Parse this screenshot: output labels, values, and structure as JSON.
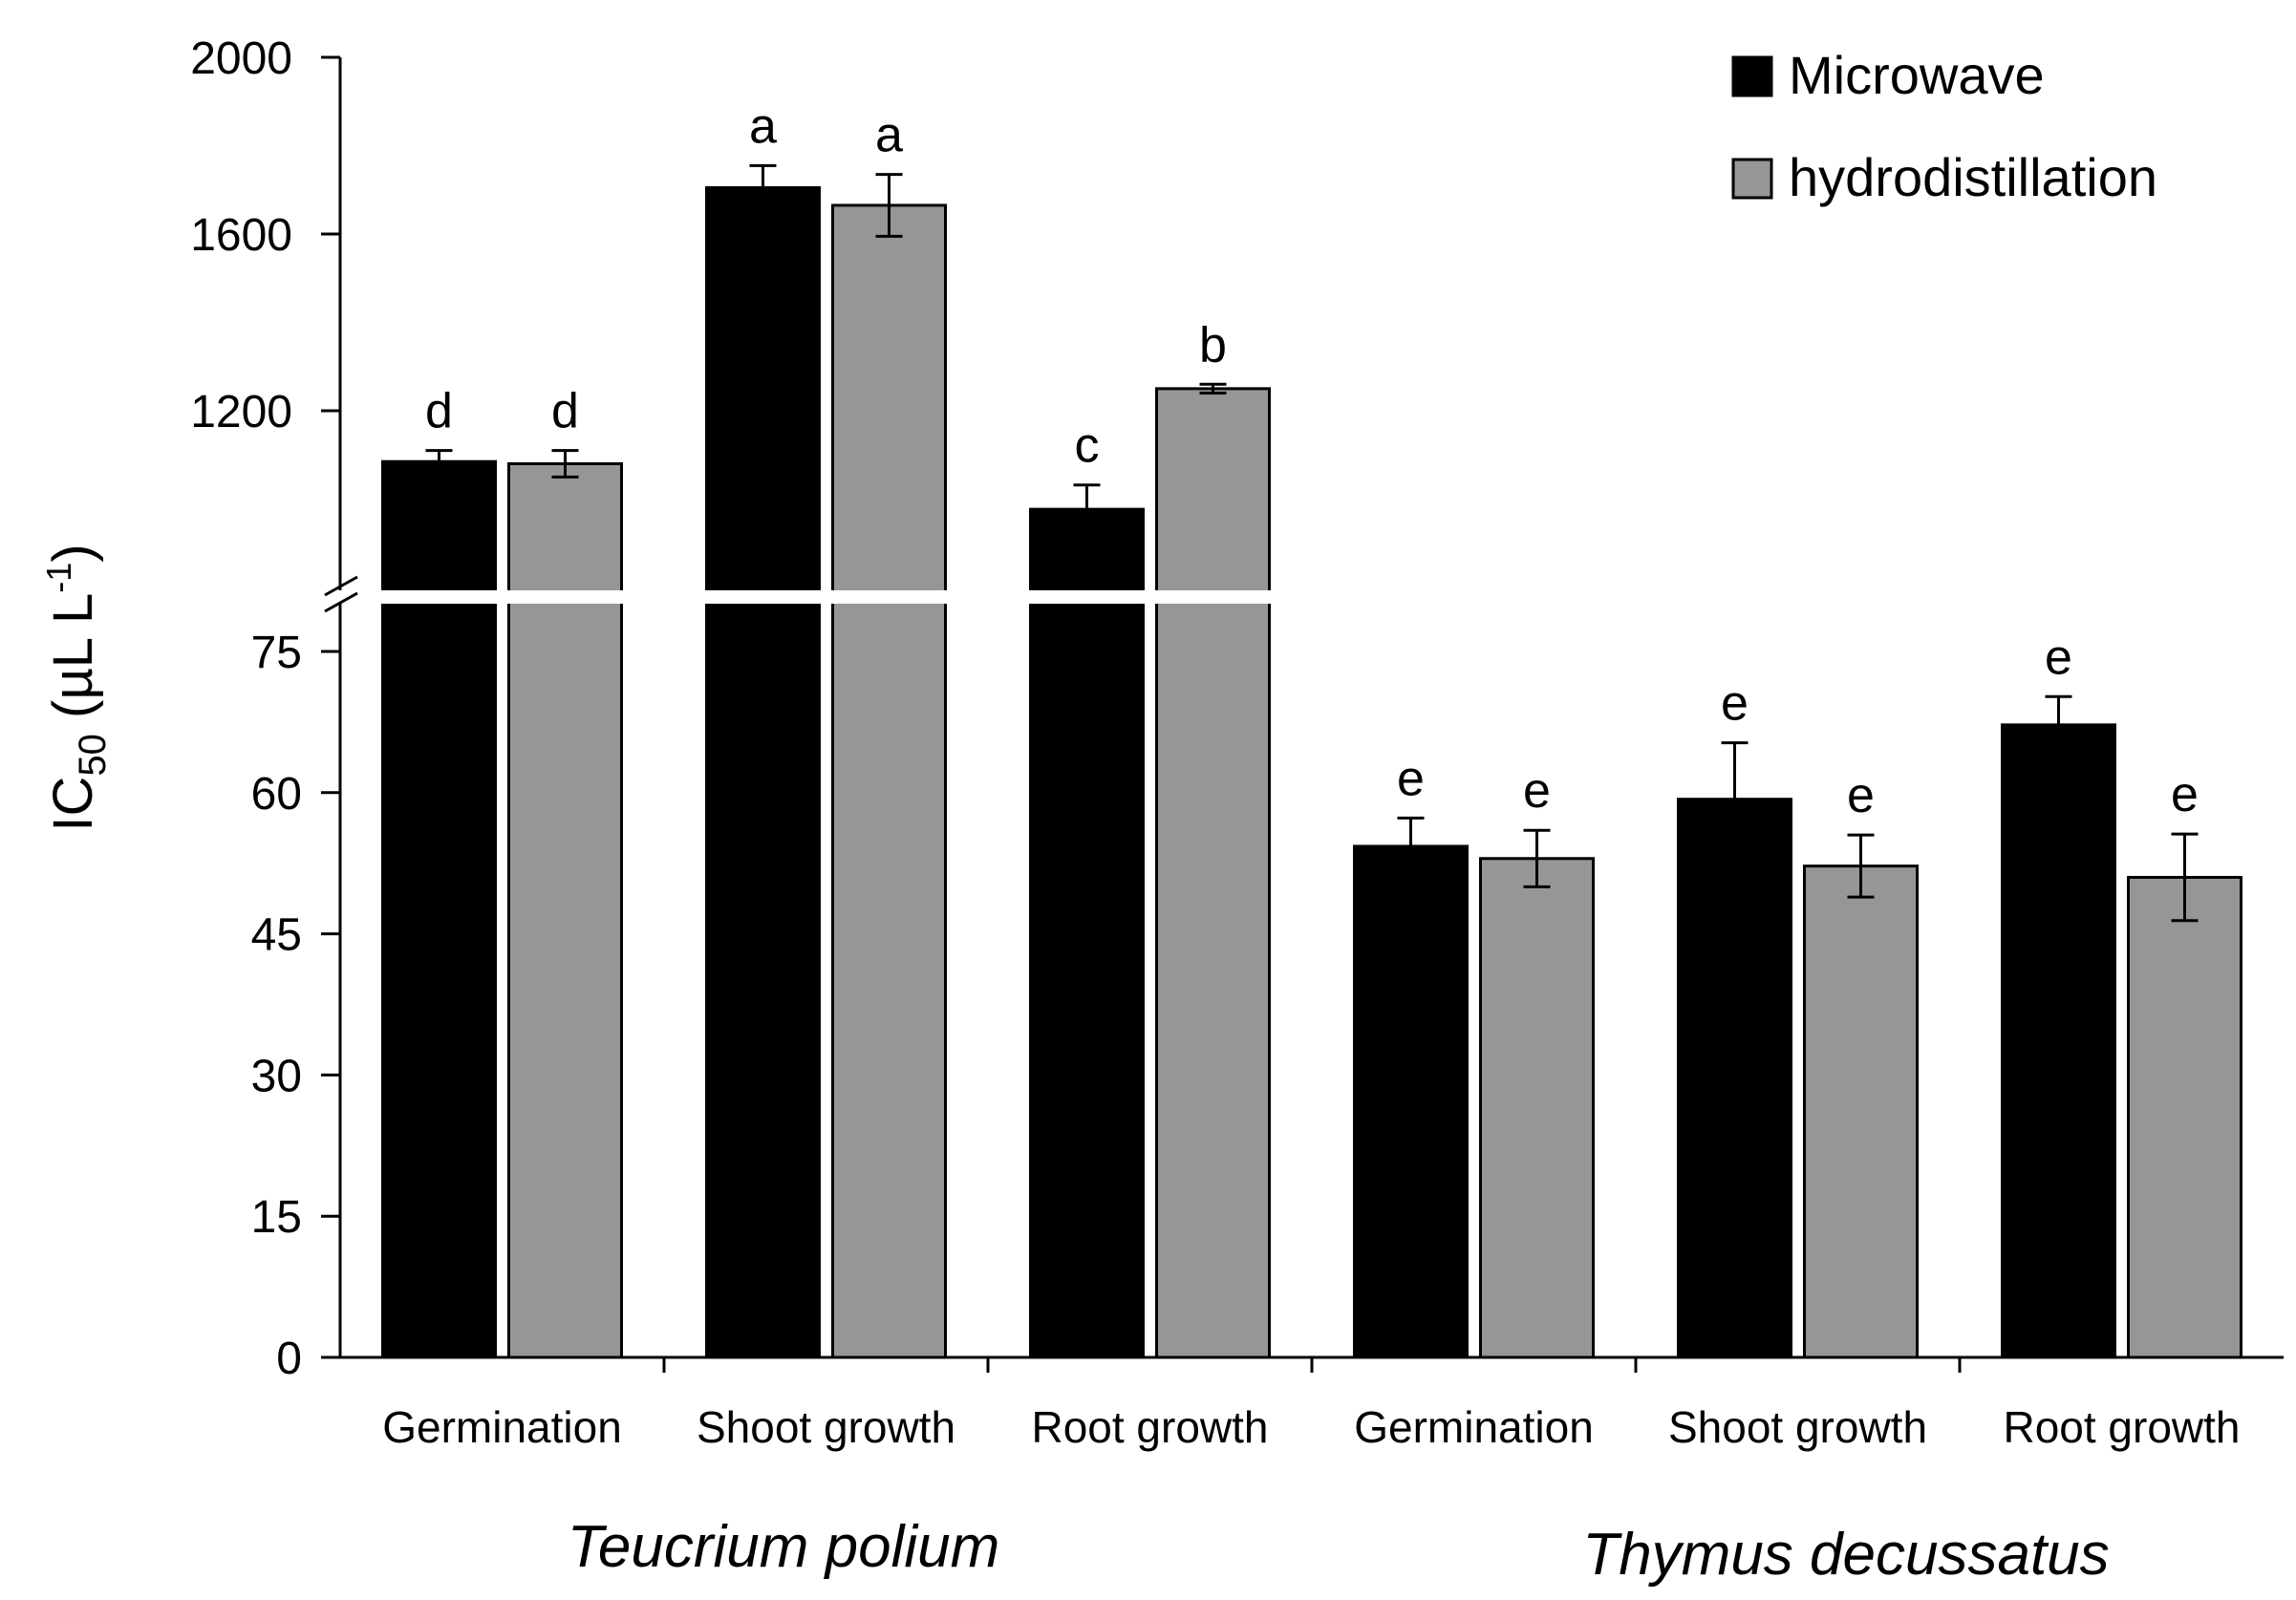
{
  "chart_data": {
    "type": "bar",
    "ylabel_main": "IC",
    "ylabel_sub": "50",
    "ylabel_unit": " (µL L",
    "ylabel_sup": "-1",
    "ylabel_close": ")",
    "lower_ylim": [
      0,
      82
    ],
    "upper_ylim": [
      830,
      2000
    ],
    "lower_ticks": [
      "0",
      "15",
      "30",
      "45",
      "60",
      "75"
    ],
    "upper_ticks": [
      "1200",
      "1600",
      "2000"
    ],
    "axis_break": true,
    "categories": [
      "Germination",
      "Shoot growth",
      "Root growth",
      "Germination",
      "Shoot growth",
      "Root growth"
    ],
    "groups": [
      {
        "label": "Teucrium polium",
        "categories": [
          0,
          1,
          2
        ]
      },
      {
        "label": "Thymus decussatus",
        "categories": [
          3,
          4,
          5
        ]
      }
    ],
    "legend": {
      "position": "top-right"
    },
    "series": [
      {
        "name": "Microwave",
        "color": "#000000",
        "values": [
          1085,
          1705,
          977,
          54.3,
          59.3,
          67.2
        ],
        "errors": [
          25,
          50,
          55,
          3.0,
          6.0,
          3.0
        ],
        "letters": [
          "d",
          "a",
          "c",
          "e",
          "e",
          "e"
        ]
      },
      {
        "name": "hydrodistillation",
        "color": "#969696",
        "values": [
          1080,
          1665,
          1250,
          53.0,
          52.2,
          51.0
        ],
        "errors": [
          30,
          70,
          10,
          3.0,
          3.3,
          4.6
        ],
        "letters": [
          "d",
          "a",
          "b",
          "e",
          "e",
          "e"
        ]
      }
    ]
  }
}
